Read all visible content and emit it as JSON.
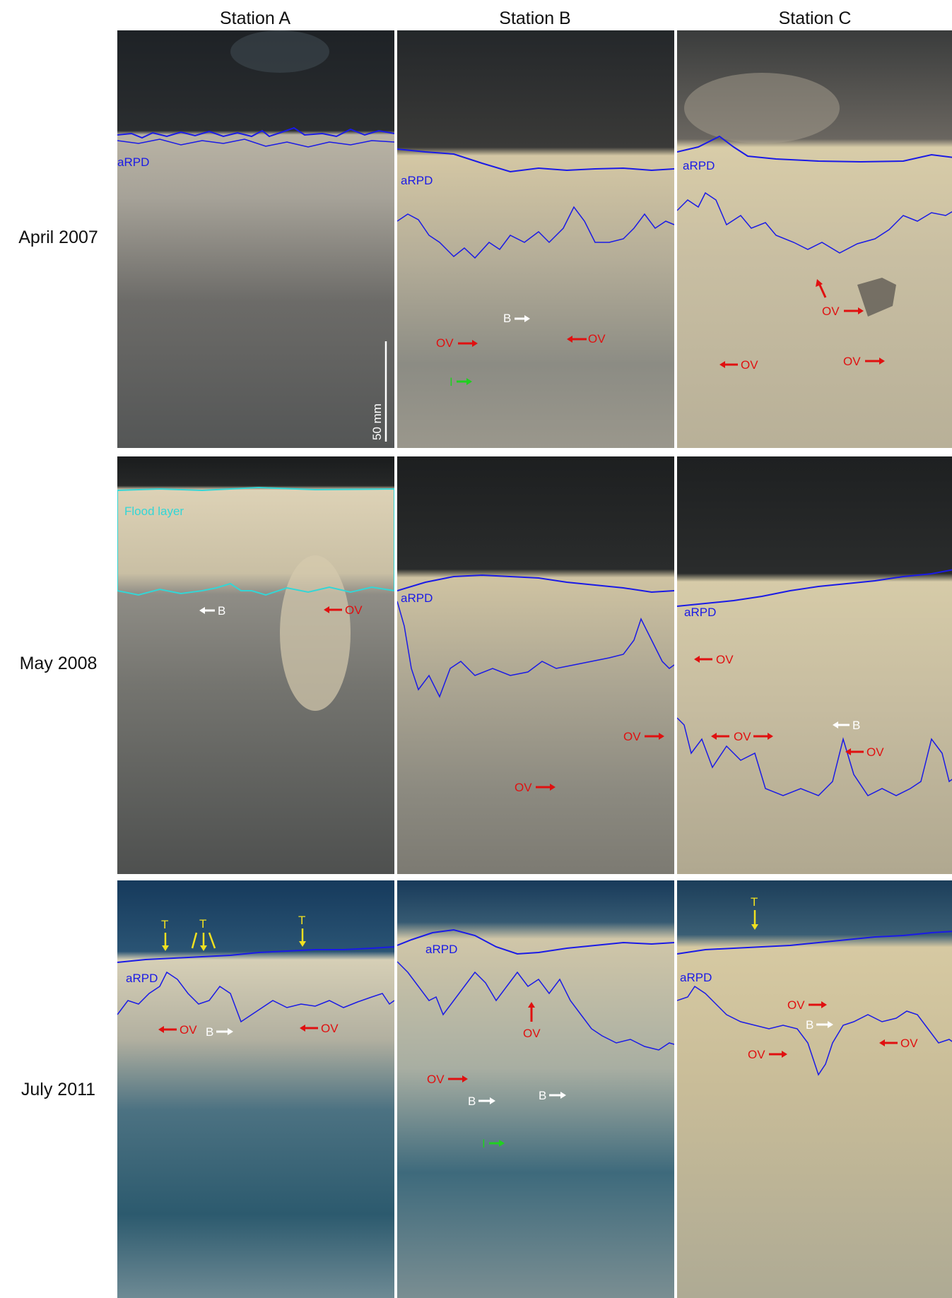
{
  "columns": [
    "Station A",
    "Station B",
    "Station C"
  ],
  "rows": [
    "April 2007",
    "May 2008",
    "July 2011"
  ],
  "labels": {
    "arpd": "aRPD",
    "ov": "OV",
    "b": "B",
    "t": "T",
    "i": "I",
    "flood_layer": "Flood layer",
    "scale": "50 mm"
  },
  "colors": {
    "arpd_line": "#1a1ae6",
    "flood_line": "#33d6d6",
    "ov_arrow": "#e01010",
    "b_arrow": "#ffffff",
    "t_arrow": "#f0e020",
    "i_arrow": "#20d020"
  }
}
